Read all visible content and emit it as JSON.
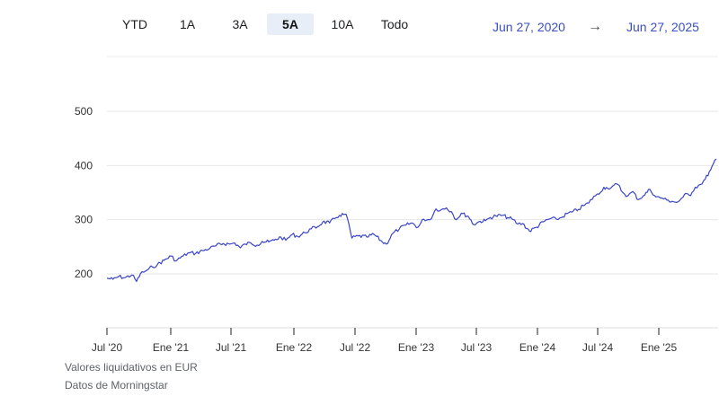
{
  "range_tabs": {
    "items": [
      "YTD",
      "1A",
      "3A",
      "5A",
      "10A",
      "Todo"
    ],
    "active": "5A"
  },
  "date_range": {
    "start": "Jun 27, 2020",
    "arrow": "→",
    "end": "Jun 27, 2025"
  },
  "footer": {
    "currency_note": "Valores liquidativos en EUR",
    "source": "Datos de Morningstar"
  },
  "colors": {
    "line": "#3a45c8",
    "grid": "#e6e6e6",
    "accent_text": "#3a4fc4",
    "active_tab_bg": "#e8eef8"
  },
  "chart_data": {
    "type": "line",
    "title": "",
    "xlabel": "",
    "ylabel": "",
    "x_ticks": [
      "Jul '20",
      "Ene '21",
      "Jul '21",
      "Ene '22",
      "Jul '22",
      "Ene '23",
      "Jul '23",
      "Ene '24",
      "Jul '24",
      "Ene '25"
    ],
    "y_ticks": [
      200,
      300,
      400,
      500
    ],
    "ylim": [
      100,
      510
    ],
    "xlim": [
      "2020-06-27",
      "2025-06-27"
    ],
    "grid": true,
    "legend": "none",
    "series": [
      {
        "name": "",
        "x": [
          "2020-06-27",
          "2020-07-15",
          "2020-08-01",
          "2020-08-20",
          "2020-09-10",
          "2020-09-24",
          "2020-10-05",
          "2020-10-20",
          "2020-10-30",
          "2020-11-10",
          "2020-11-25",
          "2020-12-15",
          "2021-01-05",
          "2021-01-20",
          "2021-02-10",
          "2021-03-01",
          "2021-03-20",
          "2021-04-10",
          "2021-05-01",
          "2021-05-20",
          "2021-06-10",
          "2021-06-30",
          "2021-07-15",
          "2021-08-01",
          "2021-08-15",
          "2021-09-01",
          "2021-09-20",
          "2021-10-05",
          "2021-10-25",
          "2021-11-10",
          "2021-11-30",
          "2021-12-15",
          "2022-01-03",
          "2022-01-20",
          "2022-02-10",
          "2022-03-01",
          "2022-03-20",
          "2022-04-05",
          "2022-04-25",
          "2022-05-10",
          "2022-05-25",
          "2022-06-10",
          "2022-06-17",
          "2022-07-01",
          "2022-07-20",
          "2022-08-15",
          "2022-09-05",
          "2022-09-30",
          "2022-10-12",
          "2022-11-01",
          "2022-11-20",
          "2022-12-10",
          "2022-12-28",
          "2023-01-15",
          "2023-02-01",
          "2023-02-20",
          "2023-03-10",
          "2023-03-25",
          "2023-04-10",
          "2023-04-25",
          "2023-05-10",
          "2023-05-25",
          "2023-06-15",
          "2023-07-01",
          "2023-07-20",
          "2023-08-05",
          "2023-08-20",
          "2023-09-05",
          "2023-09-25",
          "2023-10-15",
          "2023-10-27",
          "2023-11-10",
          "2023-11-25",
          "2023-12-15",
          "2024-01-05",
          "2024-01-25",
          "2024-02-15",
          "2024-03-05",
          "2024-03-20",
          "2024-04-05",
          "2024-04-20",
          "2024-05-10",
          "2024-05-25",
          "2024-06-10",
          "2024-06-25",
          "2024-07-10",
          "2024-07-25",
          "2024-08-05",
          "2024-08-20",
          "2024-09-05",
          "2024-09-20",
          "2024-10-05",
          "2024-10-20",
          "2024-11-05",
          "2024-11-20",
          "2024-12-10",
          "2024-12-28",
          "2025-01-15",
          "2025-01-30",
          "2025-02-15",
          "2025-02-28",
          "2025-03-10",
          "2025-03-20",
          "2025-03-31",
          "2025-04-07",
          "2025-04-15",
          "2025-04-25",
          "2025-05-10",
          "2025-05-25",
          "2025-06-10",
          "2025-06-27"
        ],
        "values": [
          192,
          190,
          195,
          193,
          198,
          186,
          200,
          205,
          209,
          213,
          217,
          225,
          233,
          224,
          233,
          239,
          238,
          243,
          247,
          252,
          256,
          255,
          257,
          248,
          255,
          257,
          253,
          260,
          259,
          262,
          268,
          262,
          273,
          269,
          276,
          283,
          287,
          296,
          294,
          302,
          308,
          310,
          304,
          266,
          270,
          268,
          273,
          259,
          255,
          275,
          283,
          290,
          294,
          286,
          301,
          300,
          320,
          318,
          322,
          315,
          300,
          312,
          306,
          291,
          297,
          298,
          304,
          307,
          308,
          303,
          300,
          292,
          293,
          279,
          286,
          296,
          302,
          301,
          304,
          311,
          314,
          319,
          326,
          331,
          343,
          347,
          360,
          358,
          362,
          365,
          350,
          344,
          352,
          337,
          344,
          356,
          342,
          340,
          336,
          334,
          332,
          336,
          342,
          348,
          345,
          350,
          360,
          365,
          375,
          392,
          412
        ]
      }
    ]
  }
}
